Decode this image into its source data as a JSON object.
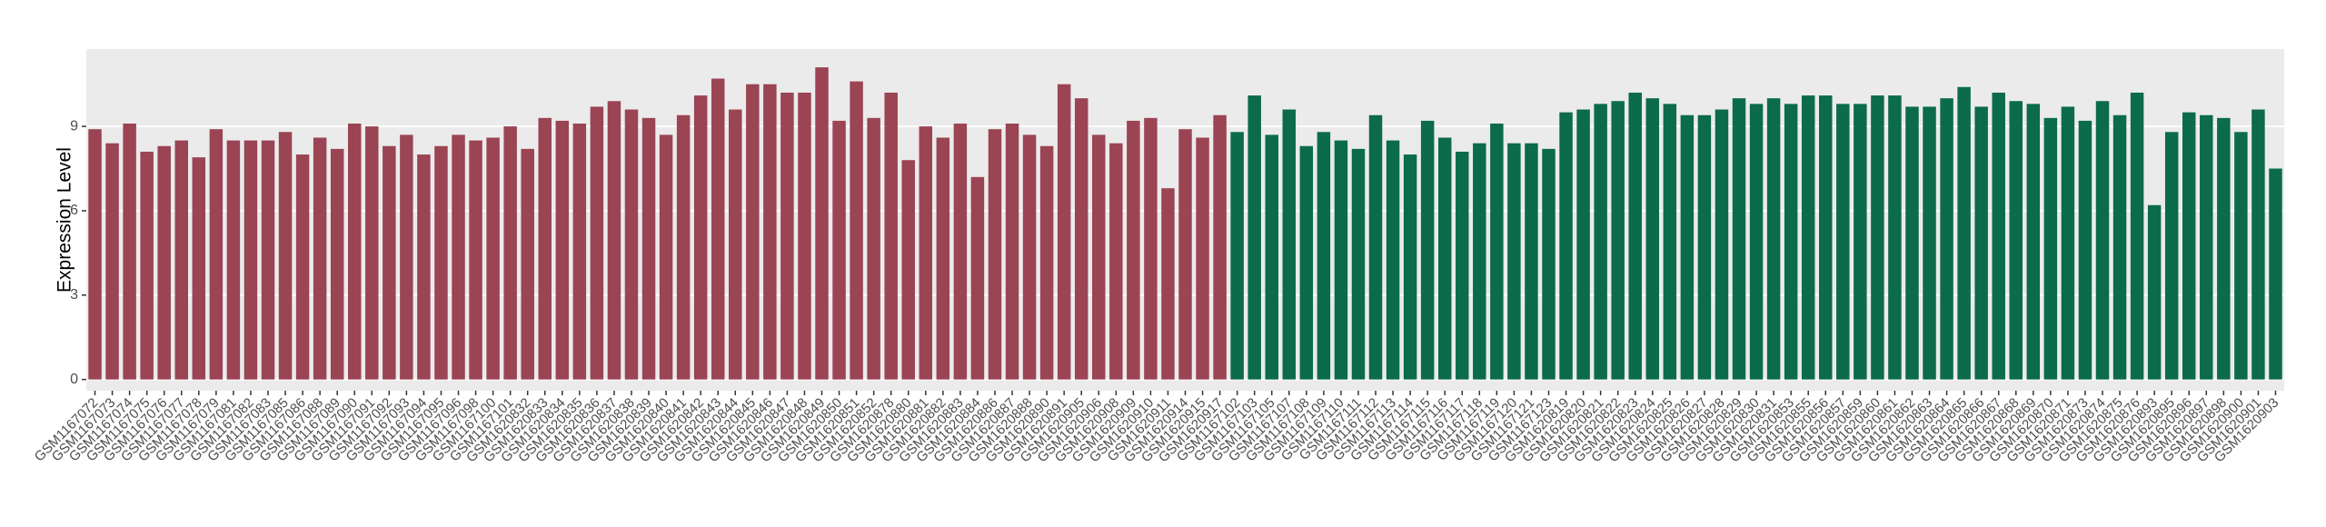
{
  "chart_data": {
    "type": "bar",
    "y_label": "Expression Level",
    "categories": [
      "GSM1167072",
      "GSM1167073",
      "GSM1167074",
      "GSM1167075",
      "GSM1167076",
      "GSM1167077",
      "GSM1167078",
      "GSM1167079",
      "GSM1167081",
      "GSM1167082",
      "GSM1167083",
      "GSM1167085",
      "GSM1167086",
      "GSM1167088",
      "GSM1167089",
      "GSM1167090",
      "GSM1167091",
      "GSM1167092",
      "GSM1167093",
      "GSM1167094",
      "GSM1167095",
      "GSM1167096",
      "GSM1167098",
      "GSM1167100",
      "GSM1167101",
      "GSM1620832",
      "GSM1620833",
      "GSM1620834",
      "GSM1620835",
      "GSM1620836",
      "GSM1620837",
      "GSM1620838",
      "GSM1620839",
      "GSM1620840",
      "GSM1620841",
      "GSM1620842",
      "GSM1620843",
      "GSM1620844",
      "GSM1620845",
      "GSM1620846",
      "GSM1620847",
      "GSM1620848",
      "GSM1620849",
      "GSM1620850",
      "GSM1620851",
      "GSM1620852",
      "GSM1620878",
      "GSM1620880",
      "GSM1620881",
      "GSM1620882",
      "GSM1620883",
      "GSM1620884",
      "GSM1620886",
      "GSM1620887",
      "GSM1620888",
      "GSM1620890",
      "GSM1620891",
      "GSM1620905",
      "GSM1620906",
      "GSM1620908",
      "GSM1620909",
      "GSM1620910",
      "GSM1620911",
      "GSM1620914",
      "GSM1620915",
      "GSM1620917",
      "GSM1167102",
      "GSM1167103",
      "GSM1167105",
      "GSM1167107",
      "GSM1167108",
      "GSM1167109",
      "GSM1167110",
      "GSM1167111",
      "GSM1167112",
      "GSM1167113",
      "GSM1167114",
      "GSM1167115",
      "GSM1167116",
      "GSM1167117",
      "GSM1167118",
      "GSM1167119",
      "GSM1167120",
      "GSM1167121",
      "GSM1167123",
      "GSM1620819",
      "GSM1620820",
      "GSM1620821",
      "GSM1620822",
      "GSM1620823",
      "GSM1620824",
      "GSM1620825",
      "GSM1620826",
      "GSM1620827",
      "GSM1620828",
      "GSM1620829",
      "GSM1620830",
      "GSM1620831",
      "GSM1620853",
      "GSM1620855",
      "GSM1620856",
      "GSM1620857",
      "GSM1620859",
      "GSM1620860",
      "GSM1620861",
      "GSM1620862",
      "GSM1620863",
      "GSM1620864",
      "GSM1620865",
      "GSM1620866",
      "GSM1620867",
      "GSM1620868",
      "GSM1620869",
      "GSM1620870",
      "GSM1620871",
      "GSM1620873",
      "GSM1620874",
      "GSM1620875",
      "GSM1620876",
      "GSM1620893",
      "GSM1620895",
      "GSM1620896",
      "GSM1620897",
      "GSM1620898",
      "GSM1620900",
      "GSM1620901",
      "GSM1620903"
    ],
    "values": [
      8.9,
      8.4,
      9.1,
      8.1,
      8.3,
      8.5,
      7.9,
      8.9,
      8.5,
      8.5,
      8.5,
      8.8,
      8.0,
      8.6,
      8.2,
      9.1,
      9.0,
      8.3,
      8.7,
      8.0,
      8.3,
      8.7,
      8.5,
      8.6,
      9.0,
      8.2,
      9.3,
      9.2,
      9.1,
      9.7,
      9.9,
      9.6,
      9.3,
      8.7,
      9.4,
      10.1,
      10.7,
      9.6,
      10.5,
      10.5,
      10.2,
      10.2,
      11.1,
      9.2,
      10.6,
      9.3,
      10.2,
      7.8,
      9.0,
      8.6,
      9.1,
      7.2,
      8.9,
      9.1,
      8.7,
      8.3,
      10.5,
      10.0,
      8.7,
      8.4,
      9.2,
      9.3,
      6.8,
      8.9,
      8.6,
      9.4,
      8.8,
      10.1,
      8.7,
      9.6,
      8.3,
      8.8,
      8.5,
      8.2,
      9.4,
      8.5,
      8.0,
      9.2,
      8.6,
      8.1,
      8.4,
      9.1,
      8.4,
      8.4,
      8.2,
      9.5,
      9.6,
      9.8,
      9.9,
      10.2,
      10.0,
      9.8,
      9.4,
      9.4,
      9.6,
      10.0,
      9.8,
      10.0,
      9.8,
      10.1,
      10.1,
      9.8,
      9.8,
      10.1,
      10.1,
      9.7,
      9.7,
      10.0,
      10.4,
      9.7,
      10.2,
      9.9,
      9.8,
      9.3,
      9.7,
      9.2,
      9.9,
      9.4,
      10.2,
      6.2,
      8.8,
      9.5,
      9.4,
      9.3,
      8.8,
      9.6,
      7.5
    ],
    "colors": [
      "#9b4453",
      "#9b4453",
      "#9b4453",
      "#9b4453",
      "#9b4453",
      "#9b4453",
      "#9b4453",
      "#9b4453",
      "#9b4453",
      "#9b4453",
      "#9b4453",
      "#9b4453",
      "#9b4453",
      "#9b4453",
      "#9b4453",
      "#9b4453",
      "#9b4453",
      "#9b4453",
      "#9b4453",
      "#9b4453",
      "#9b4453",
      "#9b4453",
      "#9b4453",
      "#9b4453",
      "#9b4453",
      "#9b4453",
      "#9b4453",
      "#9b4453",
      "#9b4453",
      "#9b4453",
      "#9b4453",
      "#9b4453",
      "#9b4453",
      "#9b4453",
      "#9b4453",
      "#9b4453",
      "#9b4453",
      "#9b4453",
      "#9b4453",
      "#9b4453",
      "#9b4453",
      "#9b4453",
      "#9b4453",
      "#9b4453",
      "#9b4453",
      "#9b4453",
      "#9b4453",
      "#9b4453",
      "#9b4453",
      "#9b4453",
      "#9b4453",
      "#9b4453",
      "#9b4453",
      "#9b4453",
      "#9b4453",
      "#9b4453",
      "#9b4453",
      "#9b4453",
      "#9b4453",
      "#9b4453",
      "#9b4453",
      "#9b4453",
      "#9b4453",
      "#9b4453",
      "#9b4453",
      "#9b4453",
      "#0b6b4a",
      "#0b6b4a",
      "#0b6b4a",
      "#0b6b4a",
      "#0b6b4a",
      "#0b6b4a",
      "#0b6b4a",
      "#0b6b4a",
      "#0b6b4a",
      "#0b6b4a",
      "#0b6b4a",
      "#0b6b4a",
      "#0b6b4a",
      "#0b6b4a",
      "#0b6b4a",
      "#0b6b4a",
      "#0b6b4a",
      "#0b6b4a",
      "#0b6b4a",
      "#0b6b4a",
      "#0b6b4a",
      "#0b6b4a",
      "#0b6b4a",
      "#0b6b4a",
      "#0b6b4a",
      "#0b6b4a",
      "#0b6b4a",
      "#0b6b4a",
      "#0b6b4a",
      "#0b6b4a",
      "#0b6b4a",
      "#0b6b4a",
      "#0b6b4a",
      "#0b6b4a",
      "#0b6b4a",
      "#0b6b4a",
      "#0b6b4a",
      "#0b6b4a",
      "#0b6b4a",
      "#0b6b4a",
      "#0b6b4a",
      "#0b6b4a",
      "#0b6b4a",
      "#0b6b4a",
      "#0b6b4a",
      "#0b6b4a",
      "#0b6b4a",
      "#0b6b4a",
      "#0b6b4a",
      "#0b6b4a",
      "#0b6b4a",
      "#0b6b4a",
      "#0b6b4a",
      "#0b6b4a",
      "#0b6b4a",
      "#0b6b4a",
      "#0b6b4a",
      "#0b6b4a",
      "#0b6b4a",
      "#0b6b4a",
      "#0b6b4a"
    ],
    "ylim": [
      -0.4,
      11.75
    ],
    "yticks": [
      0,
      3,
      6,
      9
    ],
    "grid": true
  }
}
